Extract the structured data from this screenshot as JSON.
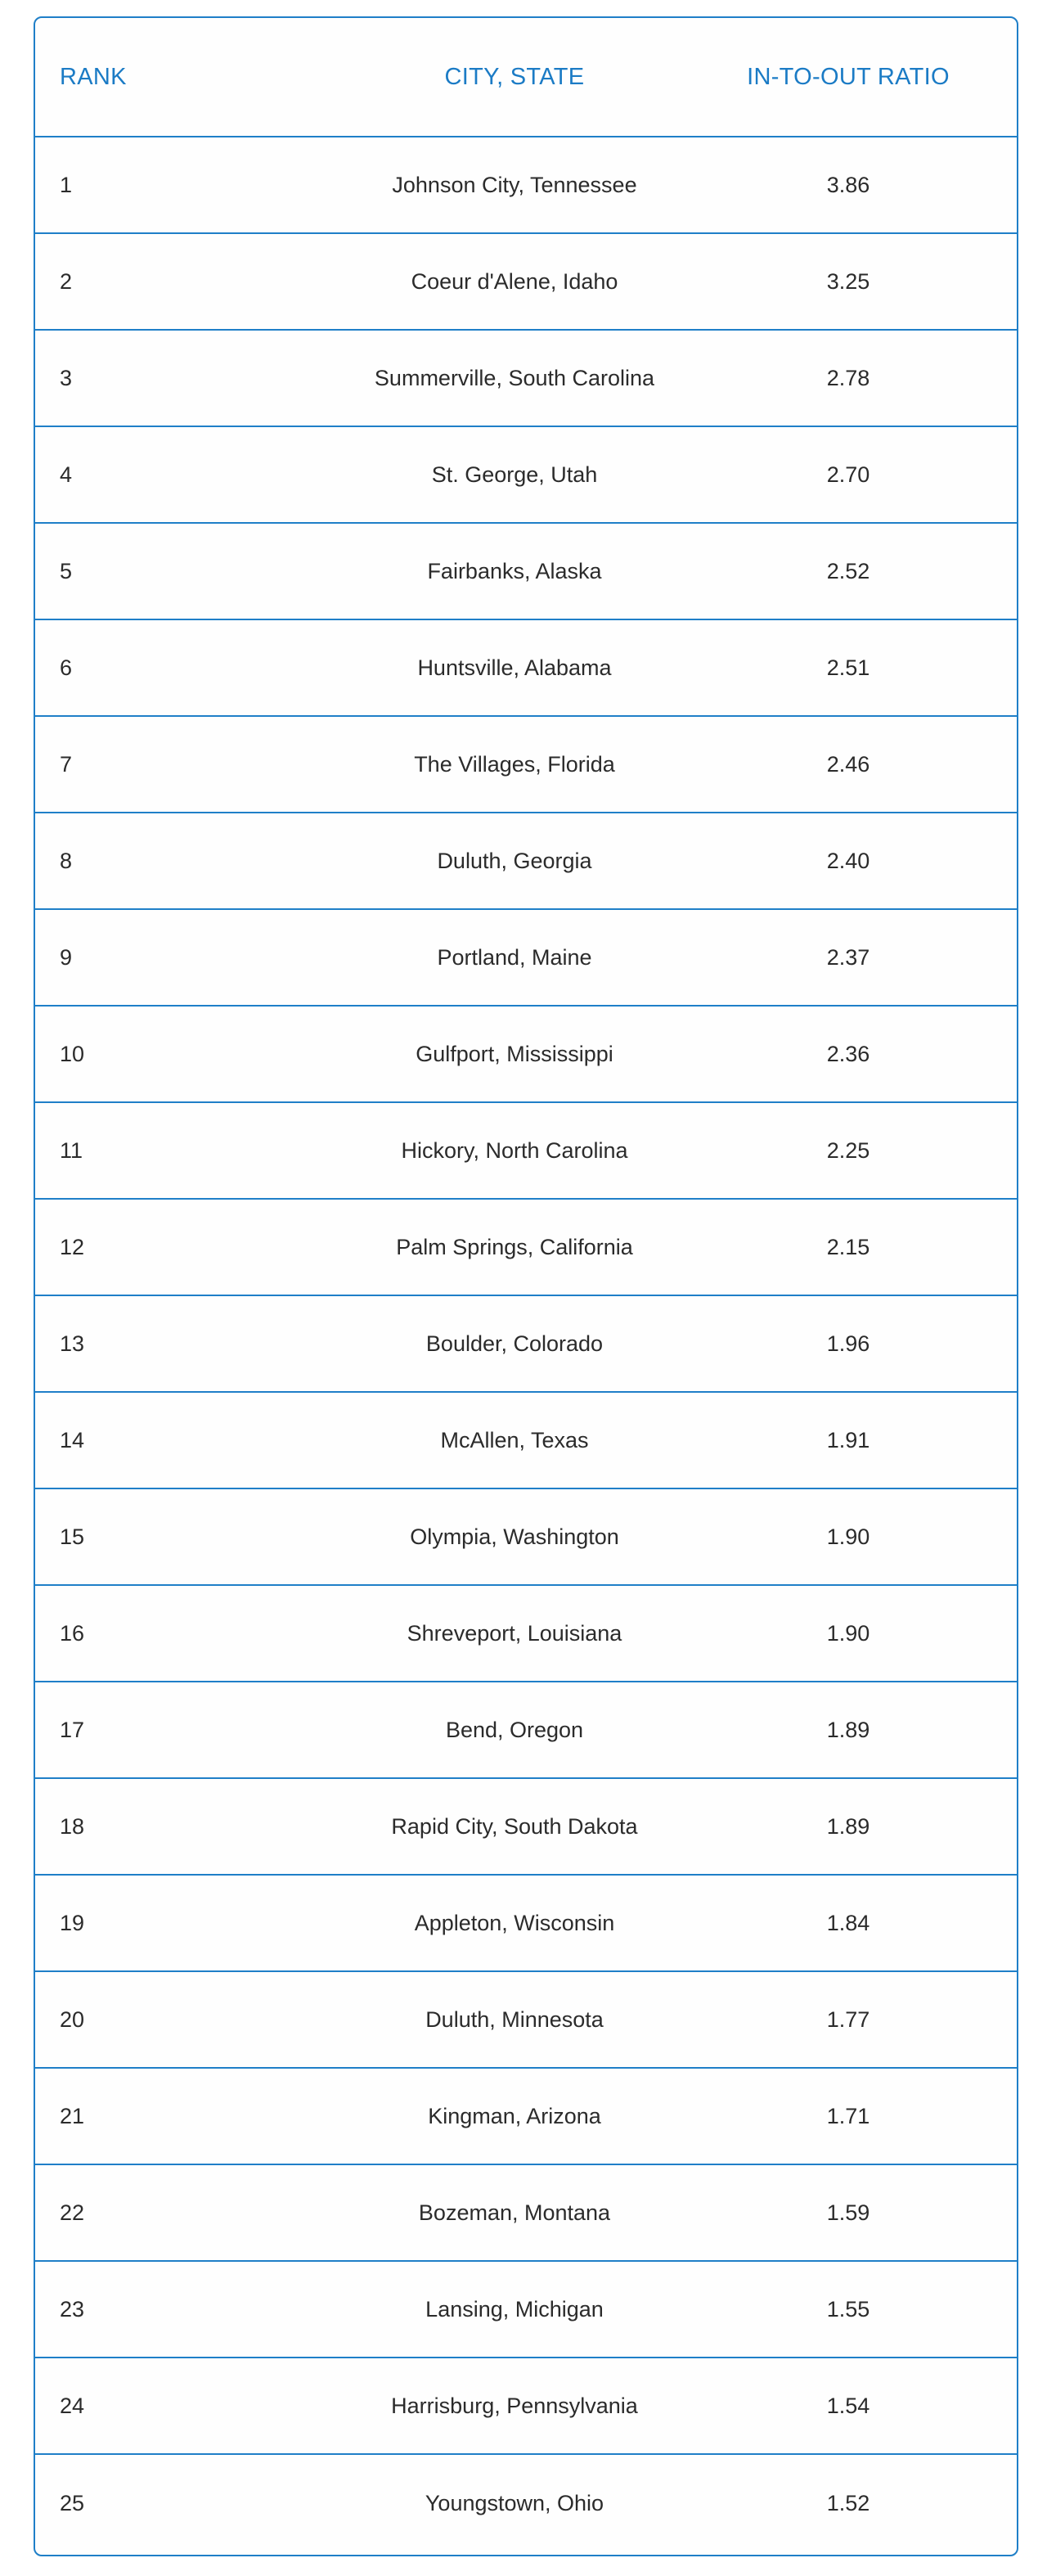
{
  "table": {
    "headers": {
      "rank": "RANK",
      "city_state": "CITY, STATE",
      "ratio": "IN-TO-OUT RATIO"
    },
    "rows": [
      {
        "rank": "1",
        "city": "Johnson City, Tennessee",
        "ratio": "3.86"
      },
      {
        "rank": "2",
        "city": "Coeur d'Alene, Idaho",
        "ratio": "3.25"
      },
      {
        "rank": "3",
        "city": "Summerville, South Carolina",
        "ratio": "2.78"
      },
      {
        "rank": "4",
        "city": "St. George, Utah",
        "ratio": "2.70"
      },
      {
        "rank": "5",
        "city": "Fairbanks, Alaska",
        "ratio": "2.52"
      },
      {
        "rank": "6",
        "city": "Huntsville, Alabama",
        "ratio": "2.51"
      },
      {
        "rank": "7",
        "city": "The Villages, Florida",
        "ratio": "2.46"
      },
      {
        "rank": "8",
        "city": "Duluth, Georgia",
        "ratio": "2.40"
      },
      {
        "rank": "9",
        "city": "Portland, Maine",
        "ratio": "2.37"
      },
      {
        "rank": "10",
        "city": "Gulfport, Mississippi",
        "ratio": "2.36"
      },
      {
        "rank": "11",
        "city": "Hickory, North Carolina",
        "ratio": "2.25"
      },
      {
        "rank": "12",
        "city": "Palm Springs, California",
        "ratio": "2.15"
      },
      {
        "rank": "13",
        "city": "Boulder, Colorado",
        "ratio": "1.96"
      },
      {
        "rank": "14",
        "city": "McAllen, Texas",
        "ratio": "1.91"
      },
      {
        "rank": "15",
        "city": "Olympia, Washington",
        "ratio": "1.90"
      },
      {
        "rank": "16",
        "city": "Shreveport, Louisiana",
        "ratio": "1.90"
      },
      {
        "rank": "17",
        "city": "Bend, Oregon",
        "ratio": "1.89"
      },
      {
        "rank": "18",
        "city": "Rapid City, South Dakota",
        "ratio": "1.89"
      },
      {
        "rank": "19",
        "city": "Appleton, Wisconsin",
        "ratio": "1.84"
      },
      {
        "rank": "20",
        "city": "Duluth, Minnesota",
        "ratio": "1.77"
      },
      {
        "rank": "21",
        "city": "Kingman, Arizona",
        "ratio": "1.71"
      },
      {
        "rank": "22",
        "city": "Bozeman, Montana",
        "ratio": "1.59"
      },
      {
        "rank": "23",
        "city": "Lansing, Michigan",
        "ratio": "1.55"
      },
      {
        "rank": "24",
        "city": "Harrisburg, Pennsylvania",
        "ratio": "1.54"
      },
      {
        "rank": "25",
        "city": "Youngstown, Ohio",
        "ratio": "1.52"
      }
    ]
  },
  "colors": {
    "accent": "#1b7bc5",
    "border": "#1f7fc8",
    "text": "#2b2b2b"
  }
}
